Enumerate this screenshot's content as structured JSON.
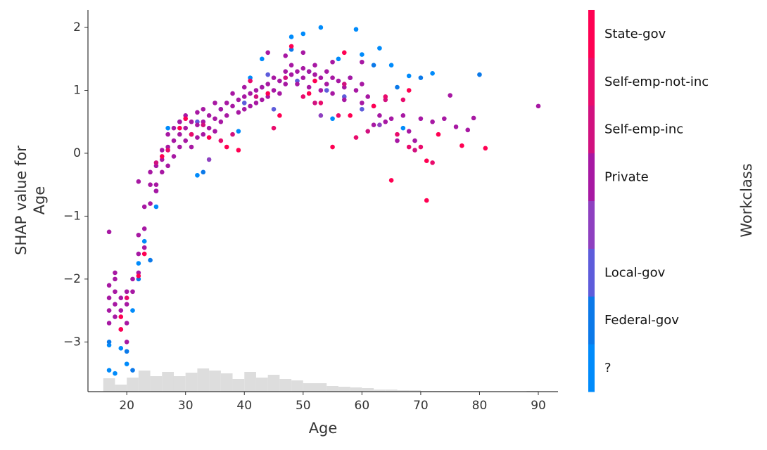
{
  "chart_data": {
    "type": "scatter",
    "xlabel": "Age",
    "ylabel": [
      "SHAP value for",
      "Age"
    ],
    "xlim": [
      13.4,
      93.35
    ],
    "ylim": [
      -3.79,
      2.28
    ],
    "xticks": [
      20,
      30,
      40,
      50,
      60,
      70,
      80,
      90
    ],
    "yticks": [
      {
        "value": -3,
        "label": "−3"
      },
      {
        "value": -2,
        "label": "−2"
      },
      {
        "value": -1,
        "label": "−1"
      },
      0,
      1,
      2
    ],
    "colorbar_title": "Workclass",
    "histogram": {
      "color": "#dddddd",
      "bins": [
        16,
        18,
        20,
        22,
        24,
        26,
        28,
        30,
        32,
        34,
        36,
        38,
        40,
        42,
        44,
        46,
        48,
        50,
        52,
        54,
        56,
        58,
        60,
        62,
        64,
        66,
        68,
        70,
        72,
        74,
        76,
        78,
        80,
        82,
        84,
        86,
        88,
        90
      ],
      "counts": [
        19,
        10,
        20,
        30,
        22,
        28,
        22,
        27,
        33,
        30,
        26,
        18,
        28,
        20,
        24,
        18,
        16,
        12,
        12,
        8,
        7,
        6,
        5,
        3,
        3,
        2,
        2,
        1,
        1,
        1,
        1,
        1,
        0,
        0,
        0,
        0,
        1
      ]
    },
    "series": [
      {
        "name": "?",
        "color": "#008bfb",
        "x": [
          17,
          17,
          18,
          19,
          20,
          21,
          22,
          23,
          25,
          27,
          32,
          36,
          39,
          41,
          43,
          48,
          50,
          53,
          59,
          63,
          65,
          68,
          72,
          60,
          56,
          67,
          55
        ],
        "values": [
          -3.45,
          -3.05,
          -3.5,
          -3.1,
          -3.35,
          -2.5,
          -1.75,
          -1.4,
          -0.85,
          0.4,
          -0.35,
          0.7,
          0.35,
          1.2,
          1.5,
          1.85,
          1.9,
          2.0,
          1.97,
          1.67,
          1.4,
          1.23,
          1.27,
          1.57,
          1.5,
          0.4,
          0.55
        ]
      },
      {
        "name": "Federal-gov",
        "color": "#0b79e9",
        "x": [
          17,
          20,
          21,
          22,
          24,
          29,
          33,
          43,
          48,
          51,
          58,
          62,
          66,
          70,
          80
        ],
        "values": [
          -3.0,
          -3.15,
          -3.45,
          -2.0,
          -1.7,
          0.5,
          -0.3,
          1.05,
          1.65,
          1.3,
          1.2,
          1.4,
          1.05,
          1.2,
          1.25
        ]
      },
      {
        "name": "Local-gov",
        "color": "#5e5cdb",
        "x": [
          25,
          32,
          40,
          44,
          49,
          54,
          57,
          60,
          45
        ],
        "values": [
          -0.6,
          0.5,
          0.8,
          1.25,
          1.15,
          1.0,
          0.9,
          0.7,
          0.7
        ]
      },
      {
        "name": null,
        "color": "#8e40c0",
        "x": [
          34,
          53,
          63
        ],
        "values": [
          -0.1,
          0.6,
          0.45
        ]
      },
      {
        "name": "Private",
        "color": "#a718a3",
        "x": [
          17,
          17,
          17,
          17,
          17,
          18,
          18,
          18,
          18,
          18,
          19,
          19,
          19,
          20,
          20,
          20,
          20,
          21,
          21,
          22,
          22,
          22,
          22,
          23,
          23,
          23,
          24,
          24,
          24,
          25,
          25,
          25,
          26,
          26,
          26,
          27,
          27,
          27,
          28,
          28,
          28,
          29,
          29,
          29,
          30,
          30,
          30,
          31,
          31,
          31,
          32,
          32,
          32,
          33,
          33,
          33,
          34,
          34,
          35,
          35,
          35,
          36,
          36,
          37,
          37,
          38,
          38,
          39,
          39,
          40,
          40,
          40,
          41,
          41,
          42,
          42,
          43,
          43,
          44,
          44,
          45,
          45,
          46,
          46,
          47,
          47,
          48,
          48,
          49,
          49,
          50,
          50,
          51,
          51,
          52,
          52,
          53,
          53,
          54,
          54,
          55,
          55,
          56,
          57,
          57,
          58,
          59,
          60,
          60,
          61,
          62,
          63,
          64,
          66,
          67,
          68,
          70,
          72,
          74,
          75,
          76,
          78,
          79,
          90,
          44,
          47,
          50,
          55,
          60,
          65,
          69,
          62
        ],
        "values": [
          -2.1,
          -2.3,
          -2.5,
          -2.7,
          -1.25,
          -2.2,
          -2.4,
          -2.6,
          -2.0,
          -1.9,
          -2.3,
          -2.5,
          -2.8,
          -2.4,
          -2.7,
          -3.0,
          -2.2,
          -2.2,
          -2.0,
          -1.3,
          -1.6,
          -1.9,
          -0.45,
          -1.2,
          -1.5,
          -0.85,
          -0.5,
          -0.8,
          -0.3,
          -0.2,
          -0.5,
          -0.6,
          -0.1,
          -0.3,
          0.05,
          0.1,
          -0.2,
          0.3,
          0.2,
          -0.05,
          0.4,
          0.3,
          0.1,
          0.5,
          0.4,
          0.2,
          0.6,
          0.3,
          0.5,
          0.1,
          0.45,
          0.65,
          0.25,
          0.5,
          0.3,
          0.7,
          0.6,
          0.4,
          0.55,
          0.8,
          0.35,
          0.7,
          0.5,
          0.8,
          0.6,
          0.75,
          0.95,
          0.85,
          0.65,
          0.9,
          0.7,
          1.05,
          0.95,
          0.75,
          1.0,
          0.8,
          1.05,
          0.85,
          1.1,
          0.9,
          1.2,
          1.0,
          1.15,
          0.95,
          1.3,
          1.1,
          1.25,
          1.4,
          1.3,
          1.1,
          1.35,
          1.2,
          1.3,
          1.05,
          1.25,
          1.4,
          1.2,
          1.0,
          1.3,
          1.1,
          1.2,
          0.95,
          1.15,
          1.05,
          0.85,
          1.2,
          1.0,
          1.1,
          0.8,
          0.9,
          0.75,
          0.6,
          0.5,
          0.2,
          0.6,
          0.35,
          0.55,
          0.5,
          0.55,
          0.92,
          0.42,
          0.37,
          0.56,
          0.75,
          1.6,
          1.55,
          1.6,
          1.45,
          1.45,
          0.55,
          0.2,
          0.45
        ]
      },
      {
        "name": "Self-emp-inc",
        "color": "#d1117f",
        "x": [
          25,
          33,
          38,
          42,
          47,
          52,
          57,
          61,
          64,
          69
        ],
        "values": [
          -0.15,
          0.45,
          0.3,
          0.9,
          1.2,
          0.8,
          1.1,
          0.35,
          0.85,
          0.05
        ]
      },
      {
        "name": "Self-emp-not-inc",
        "color": "#e90b6c",
        "x": [
          20,
          27,
          31,
          36,
          41,
          45,
          50,
          53,
          56,
          59,
          64,
          66,
          68,
          70,
          72,
          67
        ],
        "values": [
          -2.3,
          0.05,
          0.3,
          0.2,
          1.15,
          0.4,
          0.9,
          0.8,
          0.6,
          0.25,
          0.9,
          0.3,
          0.1,
          0.1,
          -0.15,
          0.85
        ]
      },
      {
        "name": "State-gov",
        "color": "#ff0052",
        "x": [
          19,
          19,
          22,
          23,
          26,
          29,
          30,
          34,
          37,
          39,
          44,
          48,
          51,
          55,
          57,
          58,
          62,
          65,
          68,
          71,
          71,
          73,
          77,
          81,
          52,
          46
        ],
        "values": [
          -2.6,
          -2.8,
          -1.95,
          -1.6,
          -0.05,
          0.4,
          0.55,
          0.25,
          0.1,
          0.05,
          0.95,
          1.7,
          0.95,
          0.1,
          1.6,
          0.6,
          0.75,
          -0.43,
          1.0,
          -0.75,
          -0.12,
          0.3,
          0.12,
          0.08,
          1.15,
          0.6
        ]
      }
    ]
  }
}
